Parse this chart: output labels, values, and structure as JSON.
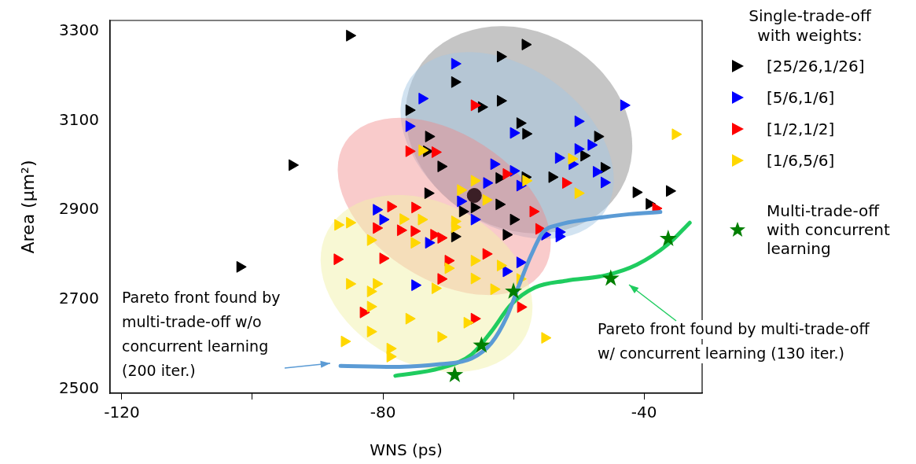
{
  "chart_data": {
    "type": "scatter",
    "xlabel": "WNS (ps)",
    "ylabel": "Area (μm²)",
    "legend_title": "Single-trade-off with weights:",
    "legend": "right",
    "xlim": [
      -121.8,
      -31.1
    ],
    "ylim": [
      2490,
      3325
    ],
    "xticks": [
      -120,
      {
        "value": -100,
        "label": null
      },
      -80,
      {
        "value": -60,
        "label": null
      },
      -40
    ],
    "yticks": [
      2500,
      2700,
      2900,
      3100,
      3300
    ],
    "series": [
      {
        "name": "[25/26,1/26]",
        "color": "#000000",
        "marker": "triangle",
        "x": [
          -85.1,
          -93.9,
          -101.9,
          -58.2,
          -62.0,
          -69.0,
          -62.0,
          -64.9,
          -76.0,
          -59.0,
          -58.1,
          -73.0,
          -73.3,
          -71.1,
          -47.1,
          -49.2,
          -46.1,
          -54.1,
          -58.2,
          -62.2,
          -73.1,
          -62.2,
          -41.2,
          -36.1,
          -39.2,
          -66.0,
          -67.8,
          -60.0,
          -61.1,
          -69.0
        ],
        "values": [
          3291,
          3001,
          2773,
          3271,
          3244,
          3187,
          3145,
          3131,
          3124,
          3095,
          3071,
          3065,
          3032,
          2998,
          3065,
          3022,
          2995,
          2974,
          2974,
          2972,
          2938,
          2913,
          2940,
          2943,
          2914,
          2906,
          2897,
          2879,
          2845,
          2841
        ]
      },
      {
        "name": "[5/6,1/6]",
        "color": "#0000ff",
        "marker": "triangle",
        "x": [
          -69.0,
          -74.0,
          -76.0,
          -50.1,
          -60.0,
          -43.1,
          -50.1,
          -48.1,
          -53.1,
          -51.0,
          -47.3,
          -46.1,
          -60.0,
          -63.0,
          -64.1,
          -59.0,
          -68.1,
          -66.0,
          -55.2,
          -53.0,
          -53.0,
          -73.0,
          -59.0,
          -61.1,
          -75.1,
          -81.0,
          -80.0
        ],
        "values": [
          3228,
          3150,
          3088,
          3099,
          3073,
          3135,
          3037,
          3046,
          3017,
          3003,
          2986,
          2962,
          2988,
          3003,
          2961,
          2955,
          2920,
          2879,
          2845,
          2851,
          2841,
          2827,
          2783,
          2763,
          2732,
          2901,
          2879
        ]
      },
      {
        "name": "[1/2,1/2]",
        "color": "#ff0000",
        "marker": "triangle",
        "x": [
          -66.0,
          -76.0,
          -72.0,
          -61.1,
          -52.0,
          -75.1,
          -38.2,
          -57.0,
          -75.2,
          -72.2,
          -71.1,
          -56.1,
          -70.0,
          -64.2,
          -71.1,
          -58.9,
          -66.0,
          -81.0,
          -87.0,
          -80.0,
          -83.0,
          -78.8,
          -77.3
        ],
        "values": [
          3135,
          3032,
          3030,
          2981,
          2961,
          2906,
          2904,
          2897,
          2853,
          2845,
          2838,
          2858,
          2787,
          2802,
          2746,
          2683,
          2657,
          2860,
          2790,
          2792,
          2671,
          2908,
          2855
        ]
      },
      {
        "name": "[1/6,5/6]",
        "color": "#ffd700",
        "marker": "triangle",
        "x": [
          -74.0,
          -66.0,
          -58.1,
          -51.1,
          -50.1,
          -35.2,
          -68.1,
          -64.2,
          -74.1,
          -69.0,
          -69.0,
          -75.2,
          -66.0,
          -70.0,
          -62.0,
          -66.0,
          -59.0,
          -72.0,
          -63.0,
          -76.0,
          -67.1,
          -71.1,
          -55.2,
          -86.9,
          -85.1,
          -81.9,
          -85.1,
          -81.0,
          -81.9,
          -81.9,
          -81.9,
          -85.9,
          -78.9,
          -78.9,
          -76.9
        ],
        "values": [
          3034,
          2966,
          2966,
          3015,
          2938,
          3070,
          2945,
          2923,
          2879,
          2875,
          2862,
          2827,
          2787,
          2770,
          2776,
          2747,
          2746,
          2725,
          2723,
          2657,
          2648,
          2616,
          2614,
          2867,
          2872,
          2833,
          2735,
          2735,
          2718,
          2684,
          2628,
          2606,
          2590,
          2572,
          2880
        ]
      },
      {
        "color": "#3b1f26",
        "marker": "circle",
        "x": [
          -66.0
        ],
        "values": [
          2933
        ]
      },
      {
        "type": "line",
        "color": "#5b9bd5",
        "marker": "none",
        "x": [
          -86.5,
          -78.4,
          -71.2,
          -66.4,
          -63.4,
          -61.0,
          -59.2,
          -57.3,
          -55.5,
          -53.1,
          -48.3,
          -42.3,
          -37.5
        ],
        "values": [
          2551,
          2549,
          2555,
          2568,
          2602,
          2662,
          2730,
          2799,
          2850,
          2867,
          2880,
          2891,
          2896
        ]
      },
      {
        "type": "line",
        "color": "#1fcc5f",
        "marker": "none",
        "x": [
          -78.1,
          -71.2,
          -66.4,
          -63.4,
          -60.4,
          -56.7,
          -51.9,
          -45.9,
          -41.1,
          -36.3,
          -33.0
        ],
        "values": [
          2529,
          2546,
          2577,
          2628,
          2688,
          2727,
          2742,
          2754,
          2778,
          2824,
          2872
        ]
      },
      {
        "name": "Multi-trade-off with concurrent learning",
        "color": "#007f00",
        "marker": "star",
        "x": [
          -60.0,
          -36.3,
          -45.1,
          -64.9,
          -69.0
        ],
        "values": [
          2718,
          2836,
          2747,
          2597,
          2531
        ]
      }
    ],
    "annotations": [
      "Pareto front found by multi-trade-off w/o concurrent learning (200 iter.)",
      "Pareto front found by multi-trade-off w/ concurrent learning (130 iter.)"
    ]
  }
}
